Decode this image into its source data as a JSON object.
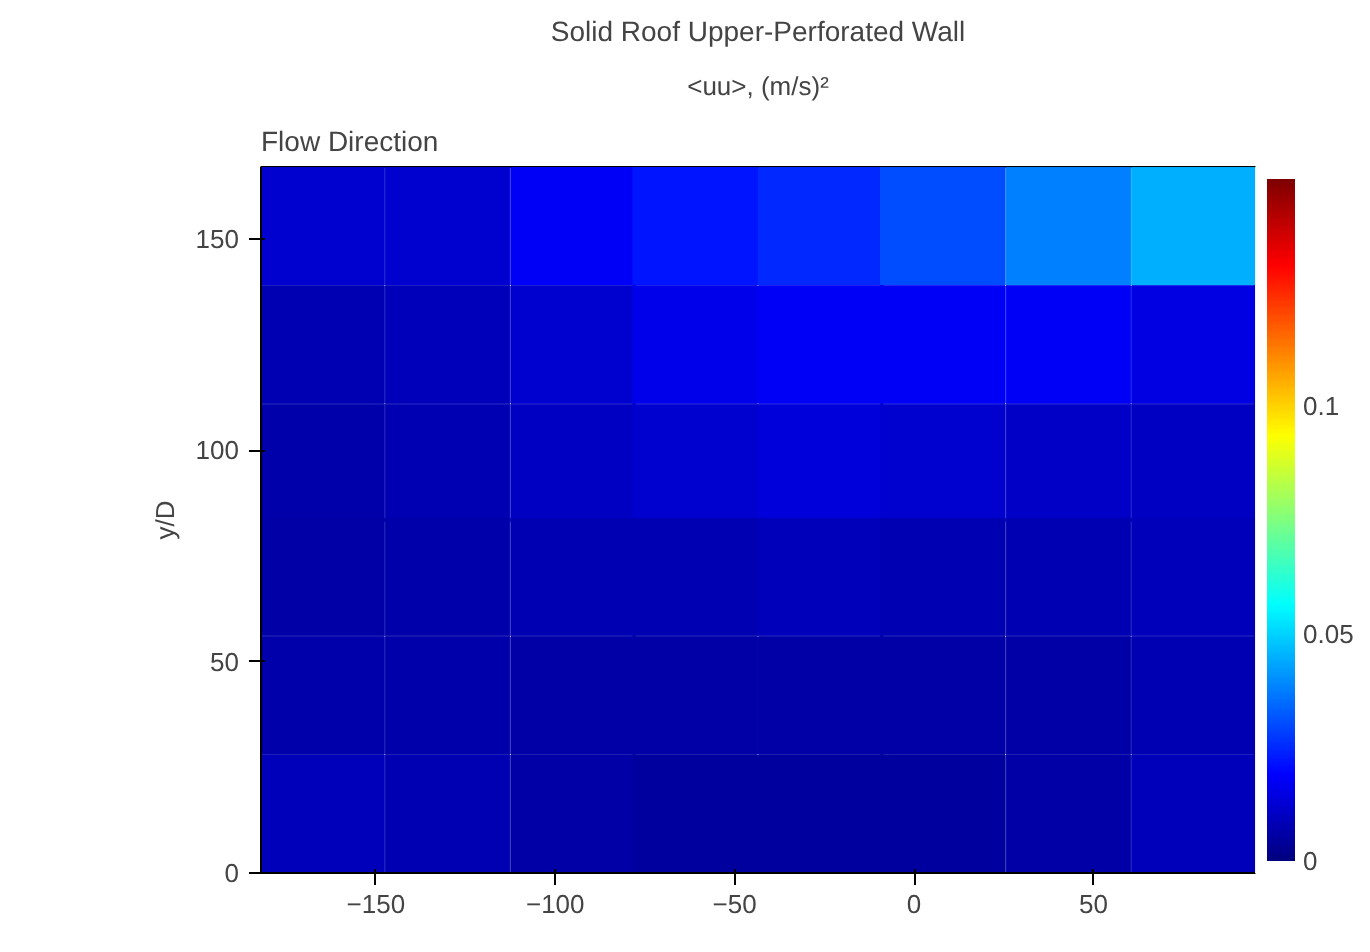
{
  "chart_data": {
    "type": "heatmap",
    "title": "Solid Roof Upper-Perforated Wall",
    "ylabel": "y/D",
    "clabel": "<uu>, (m/s)²",
    "annotations": [
      "Flow Direction"
    ],
    "x": [
      -165,
      -130,
      -95,
      -61,
      -26,
      8,
      43,
      78
    ],
    "y": [
      153,
      125,
      97,
      70,
      42,
      14
    ],
    "cells": [
      [
        0.012,
        0.012,
        0.018,
        0.022,
        0.025,
        0.03,
        0.038,
        0.045
      ],
      [
        0.008,
        0.009,
        0.012,
        0.016,
        0.018,
        0.018,
        0.018,
        0.015
      ],
      [
        0.007,
        0.008,
        0.01,
        0.012,
        0.014,
        0.012,
        0.011,
        0.01
      ],
      [
        0.006,
        0.007,
        0.008,
        0.008,
        0.009,
        0.008,
        0.008,
        0.009
      ],
      [
        0.007,
        0.007,
        0.006,
        0.006,
        0.006,
        0.006,
        0.006,
        0.008
      ],
      [
        0.009,
        0.008,
        0.006,
        0.005,
        0.005,
        0.005,
        0.006,
        0.009
      ]
    ],
    "xlim": [
      -182,
      95
    ],
    "ylim": [
      0,
      167
    ],
    "xticks": [
      -150,
      -100,
      -50,
      0,
      50
    ],
    "yticks": [
      0,
      50,
      100,
      150
    ],
    "clim": [
      0,
      0.15
    ],
    "cticks": [
      0,
      0.05,
      0.1
    ],
    "grid": false
  }
}
